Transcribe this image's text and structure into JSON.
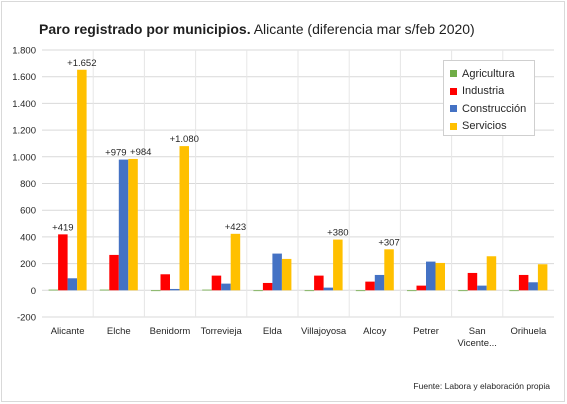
{
  "title": {
    "bold": "Paro registrado por municipios.",
    "rest": " Alicante (diferencia mar s/feb 2020)"
  },
  "source": "Fuente: Labora y elaboración propia",
  "colors": {
    "Agricultura": "#70ad47",
    "Industria": "#ff0000",
    "Construcción": "#4472c4",
    "Servicios": "#ffc000"
  },
  "chart_data": {
    "type": "bar",
    "categories": [
      "Alicante",
      "Elche",
      "Benidorm",
      "Torrevieja",
      "Elda",
      "Villajoyosa",
      "Alcoy",
      "Petrer",
      "San Vicente...",
      "Orihuela"
    ],
    "series": [
      {
        "name": "Agricultura",
        "values": [
          5,
          5,
          -5,
          5,
          0,
          0,
          0,
          0,
          -5,
          -5
        ]
      },
      {
        "name": "Industria",
        "values": [
          419,
          265,
          120,
          110,
          55,
          110,
          65,
          35,
          130,
          115
        ]
      },
      {
        "name": "Construcción",
        "values": [
          90,
          979,
          10,
          50,
          275,
          20,
          115,
          215,
          35,
          60
        ]
      },
      {
        "name": "Servicios",
        "values": [
          1652,
          984,
          1080,
          423,
          235,
          380,
          307,
          205,
          255,
          195
        ]
      }
    ],
    "data_labels": [
      {
        "category": "Alicante",
        "series": "Industria",
        "text": "+419"
      },
      {
        "category": "Alicante",
        "series": "Servicios",
        "text": "+1.652"
      },
      {
        "category": "Elche",
        "series": "Construcción",
        "text": "+979"
      },
      {
        "category": "Elche",
        "series": "Servicios",
        "text": "+984"
      },
      {
        "category": "Benidorm",
        "series": "Servicios",
        "text": "+1.080"
      },
      {
        "category": "Torrevieja",
        "series": "Servicios",
        "text": "+423"
      },
      {
        "category": "Villajoyosa",
        "series": "Servicios",
        "text": "+380"
      },
      {
        "category": "Alcoy",
        "series": "Servicios",
        "text": "+307"
      }
    ],
    "ylim": [
      -200,
      1800
    ],
    "yticks": [
      -200,
      0,
      200,
      400,
      600,
      800,
      1000,
      1200,
      1400,
      1600,
      1800
    ],
    "ytick_labels": [
      "-200",
      "0",
      "200",
      "400",
      "600",
      "800",
      "1.000",
      "1.200",
      "1.400",
      "1.600",
      "1.800"
    ],
    "grid": true,
    "legend_position": "top-right"
  }
}
